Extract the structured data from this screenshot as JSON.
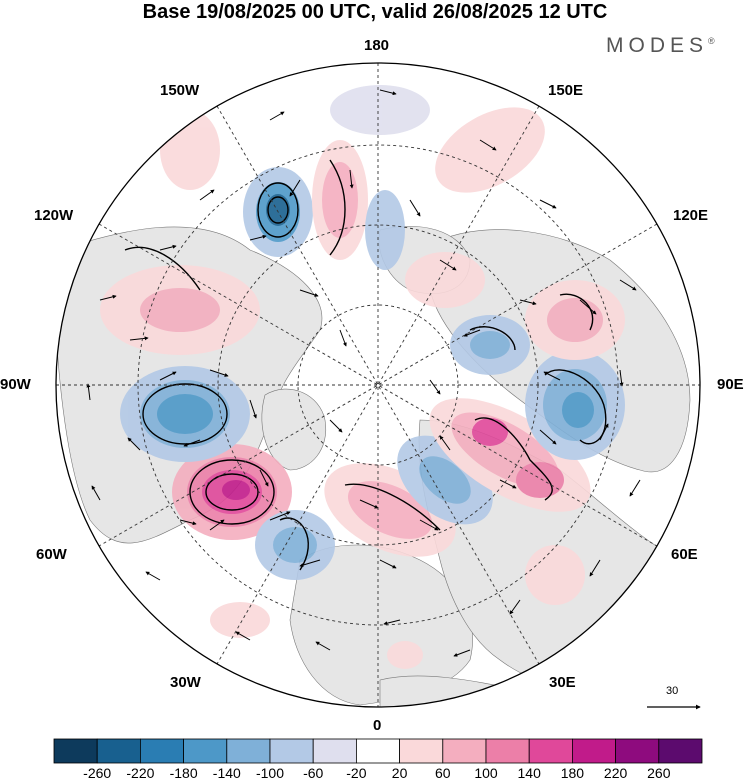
{
  "title": "Base 19/08/2025 00 UTC, valid 26/08/2025 12 UTC",
  "brand": "MODES",
  "brand_mark": "®",
  "longitude_labels": {
    "top": "180",
    "bottom": "0",
    "left": "90W",
    "right": "90E",
    "upper_left_1": "150W",
    "upper_left_2": "120W",
    "lower_left_1": "60W",
    "lower_left_2": "30W",
    "upper_right_1": "150E",
    "upper_right_2": "120E",
    "lower_right_1": "60E",
    "lower_right_2": "30E"
  },
  "reference_vector": {
    "value": "30"
  },
  "colorbar": {
    "labels": [
      "-260",
      "-220",
      "-180",
      "-140",
      "-100",
      "-60",
      "-20",
      "20",
      "60",
      "100",
      "140",
      "180",
      "220",
      "260"
    ],
    "colors": [
      "#0d3a5c",
      "#18608f",
      "#2a7db3",
      "#4d98c8",
      "#7fb0d8",
      "#b3c9e6",
      "#dfdfee",
      "#ffffff",
      "#fad9da",
      "#f4aebf",
      "#ec7fa8",
      "#e0489a",
      "#c11b8a",
      "#8e0b7e",
      "#5c0b6e"
    ]
  },
  "colors": {
    "land": "#e6e6e6",
    "coast": "#777777",
    "grid": "#333333"
  }
}
